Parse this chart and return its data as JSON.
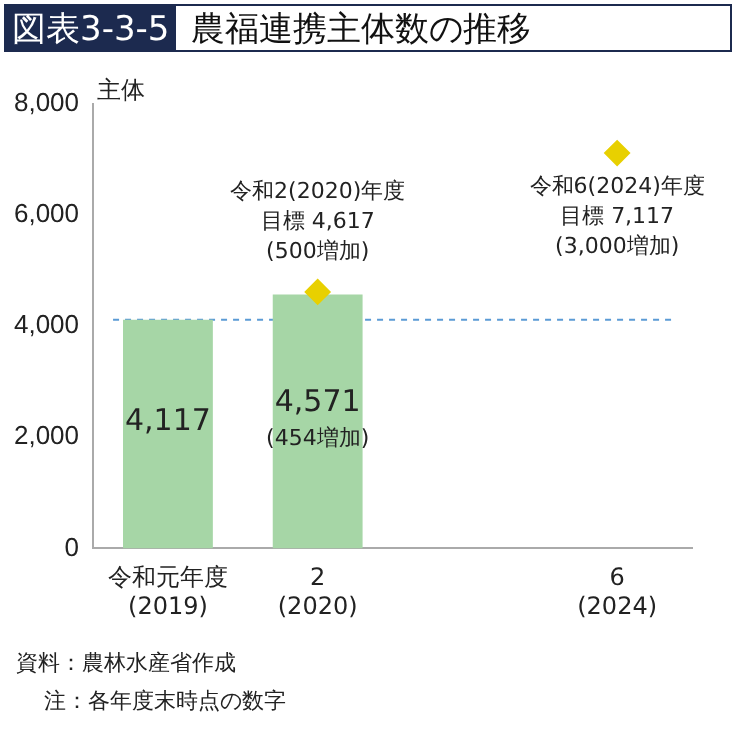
{
  "chart_data": {
    "type": "bar",
    "title": "図表3-3-5 農福連携主体数の推移",
    "ylabel": "主体",
    "categories": [
      "令和元年度\n(2019)",
      "2\n(2020)",
      null,
      "6\n(2024)"
    ],
    "series": [
      {
        "color": "#a6d6a6",
        "values": [
          4117,
          4571,
          null,
          null
        ],
        "value_labels": [
          "4,117",
          "4,571\n(454増加)",
          null,
          null
        ]
      },
      {
        "type": "scatter",
        "color": "#e8d000",
        "marker": "diamond",
        "values": [
          null,
          4617,
          null,
          7117
        ],
        "value_labels": [
          null,
          "令和2(2020)年度目標 4,617\n(500増加)",
          null,
          "令和6(2024)年度目標 7,117\n(3,000増加)"
        ]
      }
    ],
    "ylim": [
      0,
      8000
    ],
    "yticks": [
      0,
      {
        "value": 2000,
        "label": "2,000"
      },
      {
        "value": 4000,
        "label": "4,000"
      },
      {
        "value": 6000,
        "label": "6,000"
      },
      {
        "value": 8000,
        "label": "8,000"
      }
    ],
    "ref_lines": [
      {
        "axis": "y",
        "value": 4117,
        "color": "#5b9bd5",
        "line_style": "dashed"
      }
    ],
    "annotations": [
      "資料：農林水産省作成",
      "注：各年度末時点の数字"
    ],
    "grid": false,
    "legend": false
  }
}
